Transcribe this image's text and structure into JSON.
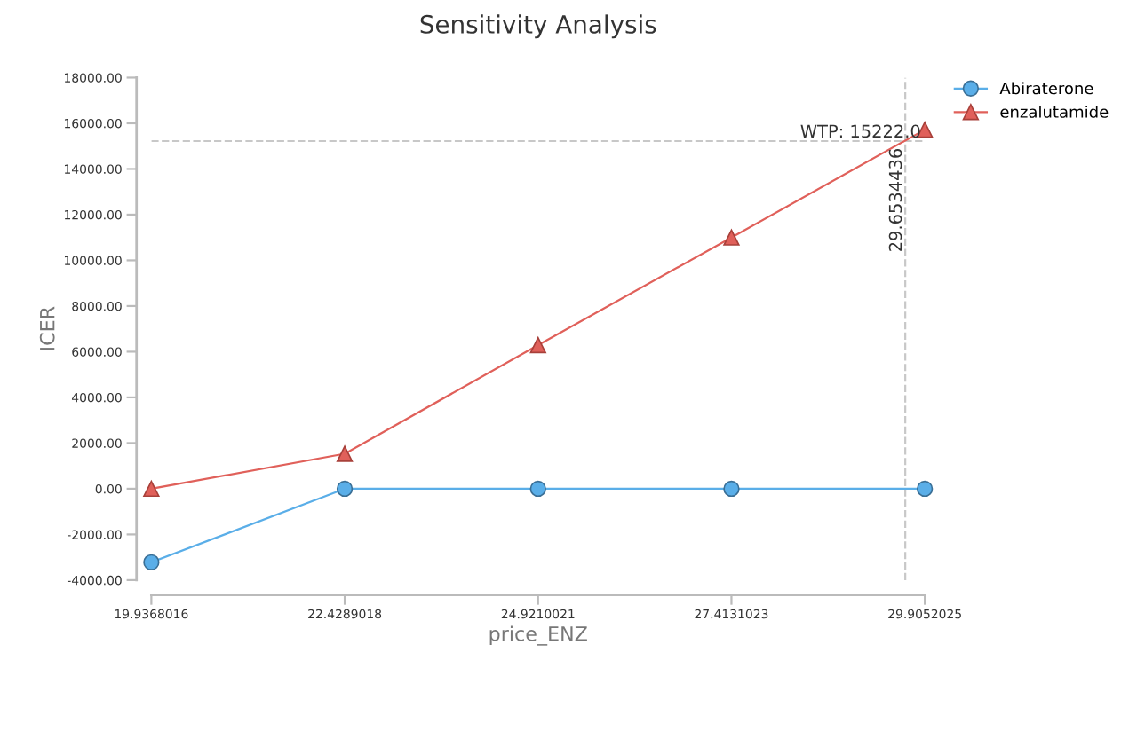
{
  "chart_data": {
    "type": "line",
    "title": "Sensitivity Analysis",
    "xlabel": "price_ENZ",
    "ylabel": "ICER",
    "x": [
      19.9368016,
      22.4289018,
      24.9210021,
      27.4131023,
      29.9052025
    ],
    "series": [
      {
        "name": "Abiraterone",
        "color": "#5aaee8",
        "marker": "circle",
        "values": [
          -3220,
          0,
          0,
          0,
          0
        ]
      },
      {
        "name": "enzalutamide",
        "color": "#e0605a",
        "marker": "triangle",
        "values": [
          0,
          1530,
          6290,
          11000,
          15720
        ]
      }
    ],
    "xlim": [
      19.9368016,
      29.9052025
    ],
    "xticks": [
      {
        "value": 19.9368016,
        "label": "19.9368016"
      },
      {
        "value": 22.4289018,
        "label": "22.4289018"
      },
      {
        "value": 24.9210021,
        "label": "24.9210021"
      },
      {
        "value": 27.4131023,
        "label": "27.4131023"
      },
      {
        "value": 29.9052025,
        "label": "29.9052025"
      }
    ],
    "ylim": [
      -4000,
      18000
    ],
    "yticks": [
      {
        "value": -4000,
        "label": "-4000.00"
      },
      {
        "value": -2000,
        "label": "-2000.00"
      },
      {
        "value": 0,
        "label": "0.00"
      },
      {
        "value": 2000,
        "label": "2000.00"
      },
      {
        "value": 4000,
        "label": "4000.00"
      },
      {
        "value": 6000,
        "label": "6000.00"
      },
      {
        "value": 8000,
        "label": "8000.00"
      },
      {
        "value": 10000,
        "label": "10000.00"
      },
      {
        "value": 12000,
        "label": "12000.00"
      },
      {
        "value": 14000,
        "label": "14000.00"
      },
      {
        "value": 16000,
        "label": "16000.00"
      },
      {
        "value": 18000,
        "label": "18000.00"
      }
    ],
    "ref_lines": [
      {
        "axis": "y",
        "value": 15222,
        "label": "WTP: 15222.0",
        "color": "#c8c8c8",
        "line_style": "dashed"
      },
      {
        "axis": "x",
        "value": 29.6534436,
        "label": "29.6534436",
        "color": "#c8c8c8",
        "line_style": "dashed"
      }
    ],
    "grid": false,
    "legend": "top right",
    "line_style": "solid"
  }
}
